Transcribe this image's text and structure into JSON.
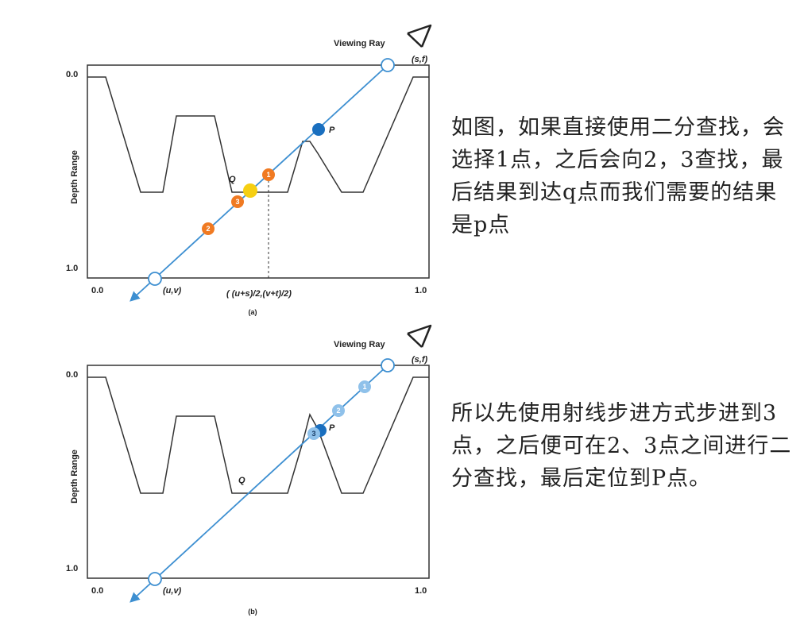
{
  "panel_a": {
    "viewing_ray": "Viewing Ray",
    "eye": "(s,f)",
    "y_axis_label": "Depth Range",
    "y_top": "0.0",
    "y_bottom": "1.0",
    "x_left": "0.0",
    "x_right": "1.0",
    "origin": "(u,v)",
    "midpoint": "( (u+s)/2,(v+t)/2)",
    "caption": "(a)",
    "point_p": "P",
    "point_q": "Q",
    "step_1": "1",
    "step_2": "2",
    "step_3": "3"
  },
  "panel_b": {
    "viewing_ray": "Viewing Ray",
    "eye": "(s,f)",
    "y_axis_label": "Depth Range",
    "y_top": "0.0",
    "y_bottom": "1.0",
    "x_left": "0.0",
    "x_right": "1.0",
    "origin": "(u,v)",
    "caption": "(b)",
    "point_p": "P",
    "point_q": "Q",
    "step_1": "1",
    "step_2": "2",
    "step_3": "3"
  },
  "notes": {
    "binary_search": "如图，如果直接使用二分查找，会选择1点，之后会向2，3查找，最后结果到达q点而我们需要的结果是p点",
    "ray_march": "所以先使用射线步进方式步进到3点，之后便可在2、3点之间进行二分查找，最后定位到P点。"
  },
  "colors": {
    "ray": "#3d8fd1",
    "surface": "#333333",
    "orange": "#f07a22",
    "yellow": "#f6cf12",
    "p_blue": "#1a6fbf",
    "light_blue": "#8fc1ea"
  }
}
